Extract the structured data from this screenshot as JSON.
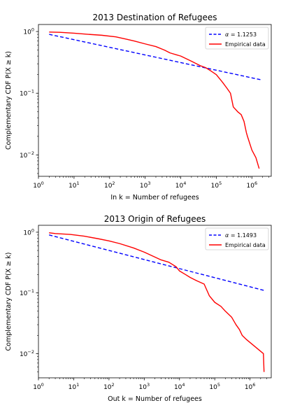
{
  "chart_data": [
    {
      "type": "line",
      "title": "2013 Destination of Refugees",
      "xlabel": "In k = Number of refugees",
      "ylabel": "Complementary CDF P(X ≥ k)",
      "xscale": "log",
      "yscale": "log",
      "xlim": [
        1,
        3500000
      ],
      "ylim": [
        0.0045,
        1.3
      ],
      "xticks": [
        {
          "value": 1,
          "base": "10",
          "exp": "0"
        },
        {
          "value": 10,
          "base": "10",
          "exp": "1"
        },
        {
          "value": 100,
          "base": "10",
          "exp": "2"
        },
        {
          "value": 1000,
          "base": "10",
          "exp": "3"
        },
        {
          "value": 10000,
          "base": "10",
          "exp": "4"
        },
        {
          "value": 100000,
          "base": "10",
          "exp": "5"
        },
        {
          "value": 1000000,
          "base": "10",
          "exp": "6"
        }
      ],
      "yticks": [
        {
          "value": 1,
          "base": "10",
          "exp": "0"
        },
        {
          "value": 0.1,
          "base": "10",
          "exp": "−1"
        },
        {
          "value": 0.01,
          "base": "10",
          "exp": "−2"
        }
      ],
      "legend": {
        "position": "top-right"
      },
      "series": [
        {
          "name": "α = 1.1253",
          "label_symbol": "α",
          "label_value": " = 1.1253",
          "style": "dashed",
          "color": "#0000ff",
          "x": [
            2,
            1800000
          ],
          "y": [
            0.9,
            0.165
          ]
        },
        {
          "name": "Empirical data",
          "label_value": "Empirical data",
          "style": "solid",
          "color": "#ff0000",
          "x": [
            2,
            4,
            10,
            25,
            60,
            150,
            300,
            500,
            1000,
            2000,
            3500,
            5000,
            10000,
            20000,
            35000,
            50000,
            70000,
            100000,
            150000,
            200000,
            250000,
            300000,
            400000,
            500000,
            600000,
            700000,
            750000,
            1000000,
            1300000,
            1600000
          ],
          "y": [
            0.98,
            0.97,
            0.94,
            0.9,
            0.87,
            0.82,
            0.75,
            0.7,
            0.63,
            0.57,
            0.5,
            0.45,
            0.4,
            0.33,
            0.28,
            0.26,
            0.23,
            0.2,
            0.15,
            0.12,
            0.1,
            0.06,
            0.05,
            0.045,
            0.035,
            0.023,
            0.02,
            0.012,
            0.009,
            0.006
          ]
        }
      ]
    },
    {
      "type": "line",
      "title": "2013 Origin of Refugees",
      "xlabel": "Out k = Number of refugees",
      "ylabel": "Complementary CDF P(X ≥ k)",
      "xscale": "log",
      "yscale": "log",
      "xlim": [
        1,
        4000000
      ],
      "ylim": [
        0.004,
        1.3
      ],
      "xticks": [
        {
          "value": 1,
          "base": "10",
          "exp": "0"
        },
        {
          "value": 10,
          "base": "10",
          "exp": "1"
        },
        {
          "value": 100,
          "base": "10",
          "exp": "2"
        },
        {
          "value": 1000,
          "base": "10",
          "exp": "3"
        },
        {
          "value": 10000,
          "base": "10",
          "exp": "4"
        },
        {
          "value": 100000,
          "base": "10",
          "exp": "5"
        },
        {
          "value": 1000000,
          "base": "10",
          "exp": "6"
        }
      ],
      "yticks": [
        {
          "value": 1,
          "base": "10",
          "exp": "0"
        },
        {
          "value": 0.1,
          "base": "10",
          "exp": "−1"
        },
        {
          "value": 0.01,
          "base": "10",
          "exp": "−2"
        }
      ],
      "legend": {
        "position": "top-right"
      },
      "series": [
        {
          "name": "α = 1.1493",
          "label_symbol": "α",
          "label_value": " = 1.1493",
          "style": "dashed",
          "color": "#0000ff",
          "x": [
            2,
            2500000
          ],
          "y": [
            0.9,
            0.11
          ]
        },
        {
          "name": "Empirical data",
          "label_value": "Empirical data",
          "style": "solid",
          "color": "#ff0000",
          "x": [
            2,
            3,
            8,
            20,
            50,
            100,
            200,
            500,
            1000,
            2000,
            3000,
            5000,
            8000,
            10000,
            15000,
            20000,
            30000,
            50000,
            70000,
            100000,
            150000,
            200000,
            300000,
            400000,
            500000,
            600000,
            800000,
            1200000,
            2400000,
            2500000
          ],
          "y": [
            0.98,
            0.95,
            0.92,
            0.86,
            0.78,
            0.72,
            0.65,
            0.55,
            0.47,
            0.39,
            0.35,
            0.32,
            0.27,
            0.23,
            0.2,
            0.18,
            0.16,
            0.14,
            0.09,
            0.07,
            0.06,
            0.05,
            0.04,
            0.03,
            0.025,
            0.02,
            0.017,
            0.014,
            0.01,
            0.005
          ]
        }
      ]
    }
  ]
}
